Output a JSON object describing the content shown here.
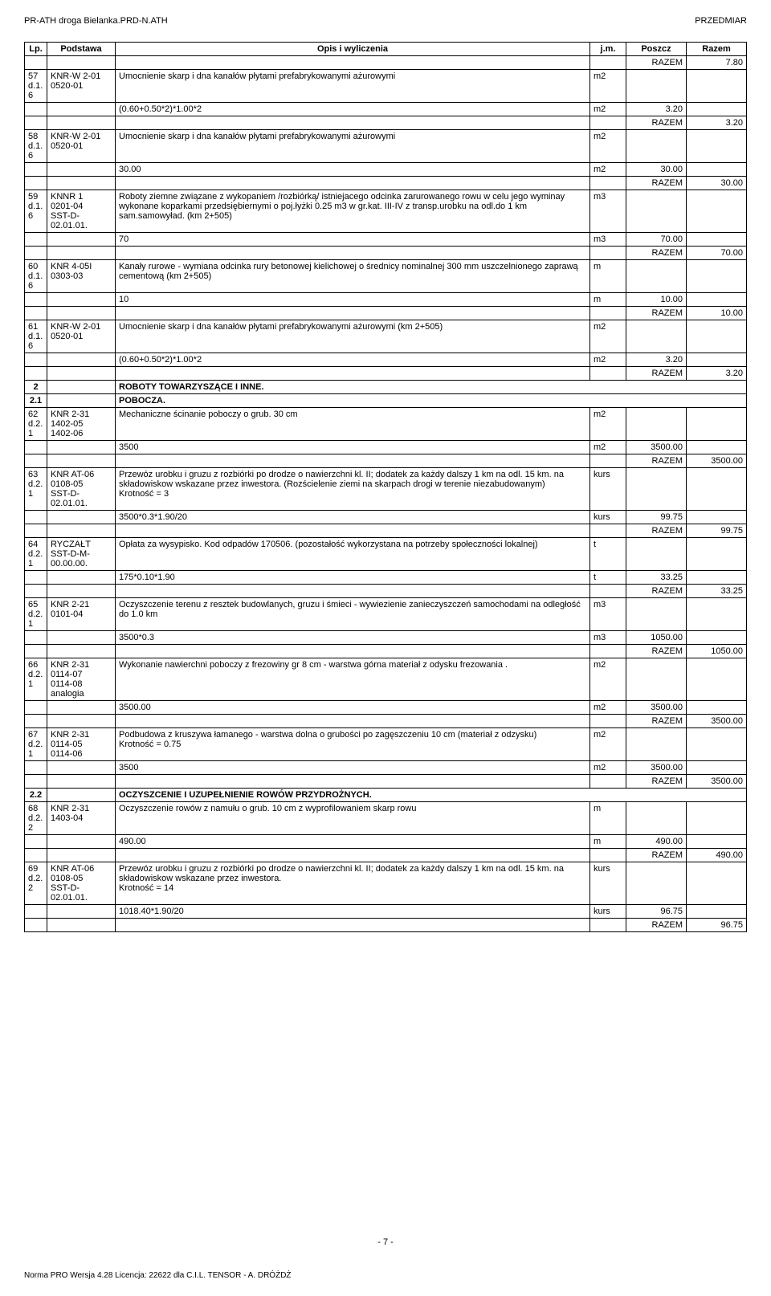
{
  "header": {
    "left": "PR-ATH droga Bielanka.PRD-N.ATH",
    "right": "PRZEDMIAR"
  },
  "columns": {
    "lp": "Lp.",
    "podstawa": "Podstawa",
    "opis": "Opis i wyliczenia",
    "jm": "j.m.",
    "poszcz": "Poszcz",
    "razem": "Razem"
  },
  "rows": [
    {
      "type": "razem",
      "razem_label": "RAZEM",
      "razem_val": "7.80"
    },
    {
      "type": "item",
      "lp": "57\nd.1.\n6",
      "pod": "KNR-W 2-01\n0520-01",
      "opis": "Umocnienie skarp i dna kanałów płytami prefabrykowanymi ażurowymi",
      "jm": "m2"
    },
    {
      "type": "calc",
      "opis": "(0.60+0.50*2)*1.00*2",
      "jm": "m2",
      "poszcz": "3.20"
    },
    {
      "type": "razem",
      "razem_label": "RAZEM",
      "razem_val": "3.20"
    },
    {
      "type": "item",
      "lp": "58\nd.1.\n6",
      "pod": "KNR-W 2-01\n0520-01",
      "opis": "Umocnienie skarp i dna kanałów płytami prefabrykowanymi ażurowymi",
      "jm": "m2"
    },
    {
      "type": "calc",
      "opis": "30.00",
      "jm": "m2",
      "poszcz": "30.00"
    },
    {
      "type": "razem",
      "razem_label": "RAZEM",
      "razem_val": "30.00"
    },
    {
      "type": "item",
      "lp": "59\nd.1.\n6",
      "pod": "KNNR 1\n0201-04\nSST-D-\n02.01.01.",
      "opis": "Roboty ziemne związane z wykopaniem /rozbiórką/ istniejacego odcinka zarurowanego rowu w celu jego wyminay wykonane koparkami przedsiębiernymi o poj.łyżki 0.25 m3 w gr.kat. III-IV z transp.urobku na odl.do 1 km sam.samowyład. (km 2+505)",
      "jm": "m3"
    },
    {
      "type": "calc",
      "opis": "70",
      "jm": "m3",
      "poszcz": "70.00"
    },
    {
      "type": "razem",
      "razem_label": "RAZEM",
      "razem_val": "70.00"
    },
    {
      "type": "item",
      "lp": "60\nd.1.\n6",
      "pod": "KNR 4-05I\n0303-03",
      "opis": "Kanały rurowe - wymiana odcinka rury betonowej kielichowej o średnicy nominalnej 300 mm uszczelnionego zaprawą cementową (km 2+505)",
      "jm": "m"
    },
    {
      "type": "calc",
      "opis": "10",
      "jm": "m",
      "poszcz": "10.00"
    },
    {
      "type": "razem",
      "razem_label": "RAZEM",
      "razem_val": "10.00"
    },
    {
      "type": "item",
      "lp": "61\nd.1.\n6",
      "pod": "KNR-W 2-01\n0520-01",
      "opis": "Umocnienie skarp i dna kanałów płytami prefabrykowanymi ażurowymi (km 2+505)",
      "jm": "m2"
    },
    {
      "type": "calc",
      "opis": "(0.60+0.50*2)*1.00*2",
      "jm": "m2",
      "poszcz": "3.20"
    },
    {
      "type": "razem",
      "razem_label": "RAZEM",
      "razem_val": "3.20"
    },
    {
      "type": "section",
      "lp": "2",
      "opis": "ROBOTY TOWARZYSZĄCE I INNE."
    },
    {
      "type": "section",
      "lp": "2.1",
      "opis": "POBOCZA."
    },
    {
      "type": "item",
      "lp": "62\nd.2.\n1",
      "pod": "KNR 2-31\n1402-05\n1402-06",
      "opis": "Mechaniczne ścinanie poboczy o grub. 30 cm",
      "jm": "m2"
    },
    {
      "type": "calc",
      "opis": "3500",
      "jm": "m2",
      "poszcz": "3500.00"
    },
    {
      "type": "razem",
      "razem_label": "RAZEM",
      "razem_val": "3500.00"
    },
    {
      "type": "item",
      "lp": "63\nd.2.\n1",
      "pod": "KNR AT-06\n0108-05\nSST-D-\n02.01.01.",
      "opis": "Przewóz urobku i gruzu z rozbiórki po drodze o nawierzchni kl. II; dodatek za każdy dalszy 1 km na odl. 15 km. na składowiskow wskazane przez inwestora. (Rozścielenie ziemi na skarpach drogi w terenie niezabudowanym)\nKrotność = 3",
      "jm": "kurs"
    },
    {
      "type": "calc",
      "opis": "3500*0.3*1.90/20",
      "jm": "kurs",
      "poszcz": "99.75"
    },
    {
      "type": "razem",
      "razem_label": "RAZEM",
      "razem_val": "99.75"
    },
    {
      "type": "item",
      "lp": "64\nd.2.\n1",
      "pod": "RYCZAŁT\nSST-D-M-\n00.00.00.",
      "opis": "Opłata za wysypisko. Kod odpadów 170506. (pozostałość wykorzystana na potrzeby społeczności lokalnej)",
      "jm": "t"
    },
    {
      "type": "calc",
      "opis": "175*0.10*1.90",
      "jm": "t",
      "poszcz": "33.25"
    },
    {
      "type": "razem",
      "razem_label": "RAZEM",
      "razem_val": "33.25"
    },
    {
      "type": "item",
      "lp": "65\nd.2.\n1",
      "pod": "KNR 2-21\n0101-04",
      "opis": "Oczyszczenie terenu z resztek budowlanych, gruzu i śmieci - wywiezienie zanieczyszczeń samochodami na odległość do 1.0 km",
      "jm": "m3"
    },
    {
      "type": "calc",
      "opis": "3500*0.3",
      "jm": "m3",
      "poszcz": "1050.00"
    },
    {
      "type": "razem",
      "razem_label": "RAZEM",
      "razem_val": "1050.00"
    },
    {
      "type": "item",
      "lp": "66\nd.2.\n1",
      "pod": "KNR 2-31\n0114-07\n0114-08\nanalogia",
      "opis": "Wykonanie nawierchni poboczy z frezowiny gr 8 cm  - warstwa górna  materiał z odysku frezowania .",
      "jm": "m2"
    },
    {
      "type": "calc",
      "opis": "3500.00",
      "jm": "m2",
      "poszcz": "3500.00"
    },
    {
      "type": "razem",
      "razem_label": "RAZEM",
      "razem_val": "3500.00"
    },
    {
      "type": "item",
      "lp": "67\nd.2.\n1",
      "pod": "KNR 2-31\n0114-05\n0114-06",
      "opis": "Podbudowa z kruszywa łamanego - warstwa dolna o grubości po zagęszczeniu 10 cm (materiał z odzysku)\nKrotność = 0.75",
      "jm": "m2"
    },
    {
      "type": "calc",
      "opis": "3500",
      "jm": "m2",
      "poszcz": "3500.00"
    },
    {
      "type": "razem",
      "razem_label": "RAZEM",
      "razem_val": "3500.00"
    },
    {
      "type": "section",
      "lp": "2.2",
      "opis": "OCZYSZCENIE I UZUPEŁNIENIE ROWÓW PRZYDROŻNYCH."
    },
    {
      "type": "item",
      "lp": "68\nd.2.\n2",
      "pod": "KNR 2-31\n1403-04",
      "opis": "Oczyszczenie rowów z namułu o grub. 10 cm z wyprofilowaniem skarp rowu",
      "jm": "m"
    },
    {
      "type": "calc",
      "opis": "490.00",
      "jm": "m",
      "poszcz": "490.00"
    },
    {
      "type": "razem",
      "razem_label": "RAZEM",
      "razem_val": "490.00"
    },
    {
      "type": "item",
      "lp": "69\nd.2.\n2",
      "pod": "KNR AT-06\n0108-05\nSST-D-\n02.01.01.",
      "opis": "Przewóz urobku i gruzu z rozbiórki po drodze o nawierzchni kl. II; dodatek za każdy dalszy 1 km na odl. 15 km. na składowiskow wskazane przez inwestora.\nKrotność = 14",
      "jm": "kurs"
    },
    {
      "type": "calc",
      "opis": "1018.40*1.90/20",
      "jm": "kurs",
      "poszcz": "96.75"
    },
    {
      "type": "razem",
      "razem_label": "RAZEM",
      "razem_val": "96.75"
    }
  ],
  "footer": {
    "page": "- 7 -",
    "norma": "Norma PRO Wersja 4.28 Licencja: 22622 dla C.I.L. TENSOR - A. DRÓŻDŻ"
  }
}
